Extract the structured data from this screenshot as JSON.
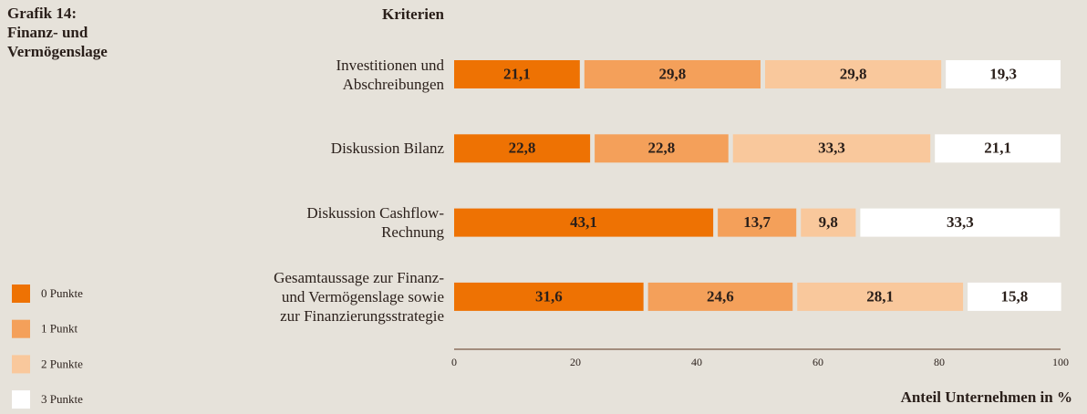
{
  "chart_data": {
    "type": "stacked-bar-horizontal",
    "title": "Grafik 14:\nFinanz- und\nVermögenslage",
    "category_axis_label": "Kriterien",
    "x_axis_label": "Anteil Unternehmen in %",
    "categories": [
      "Investitionen und\nAbschreibungen",
      "Diskussion Bilanz",
      "Diskussion Cashflow-\nRechnung",
      "Gesamtaussage zur Finanz-\nund Vermögenslage sowie\nzur Finanzierungsstrategie"
    ],
    "series": [
      {
        "name": "0 Punkte",
        "color": "#ee7203",
        "values": [
          21.1,
          22.8,
          43.1,
          31.6
        ],
        "value_labels": [
          "21,1",
          "22,8",
          "43,1",
          "31,6"
        ]
      },
      {
        "name": "1 Punkt",
        "color": "#f4a05a",
        "values": [
          29.8,
          22.8,
          13.7,
          24.6
        ],
        "value_labels": [
          "29,8",
          "22,8",
          "13,7",
          "24,6"
        ]
      },
      {
        "name": "2 Punkte",
        "color": "#f9c89c",
        "values": [
          29.8,
          33.3,
          9.8,
          28.1
        ],
        "value_labels": [
          "29,8",
          "33,3",
          "9,8",
          "28,1"
        ]
      },
      {
        "name": "3 Punkte",
        "color": "#ffffff",
        "values": [
          19.3,
          21.1,
          33.3,
          15.8
        ],
        "value_labels": [
          "19,3",
          "21,1",
          "33,3",
          "15,8"
        ]
      }
    ],
    "xlim": [
      0,
      100
    ],
    "xticks": [
      0,
      20,
      40,
      60,
      80,
      100
    ]
  }
}
